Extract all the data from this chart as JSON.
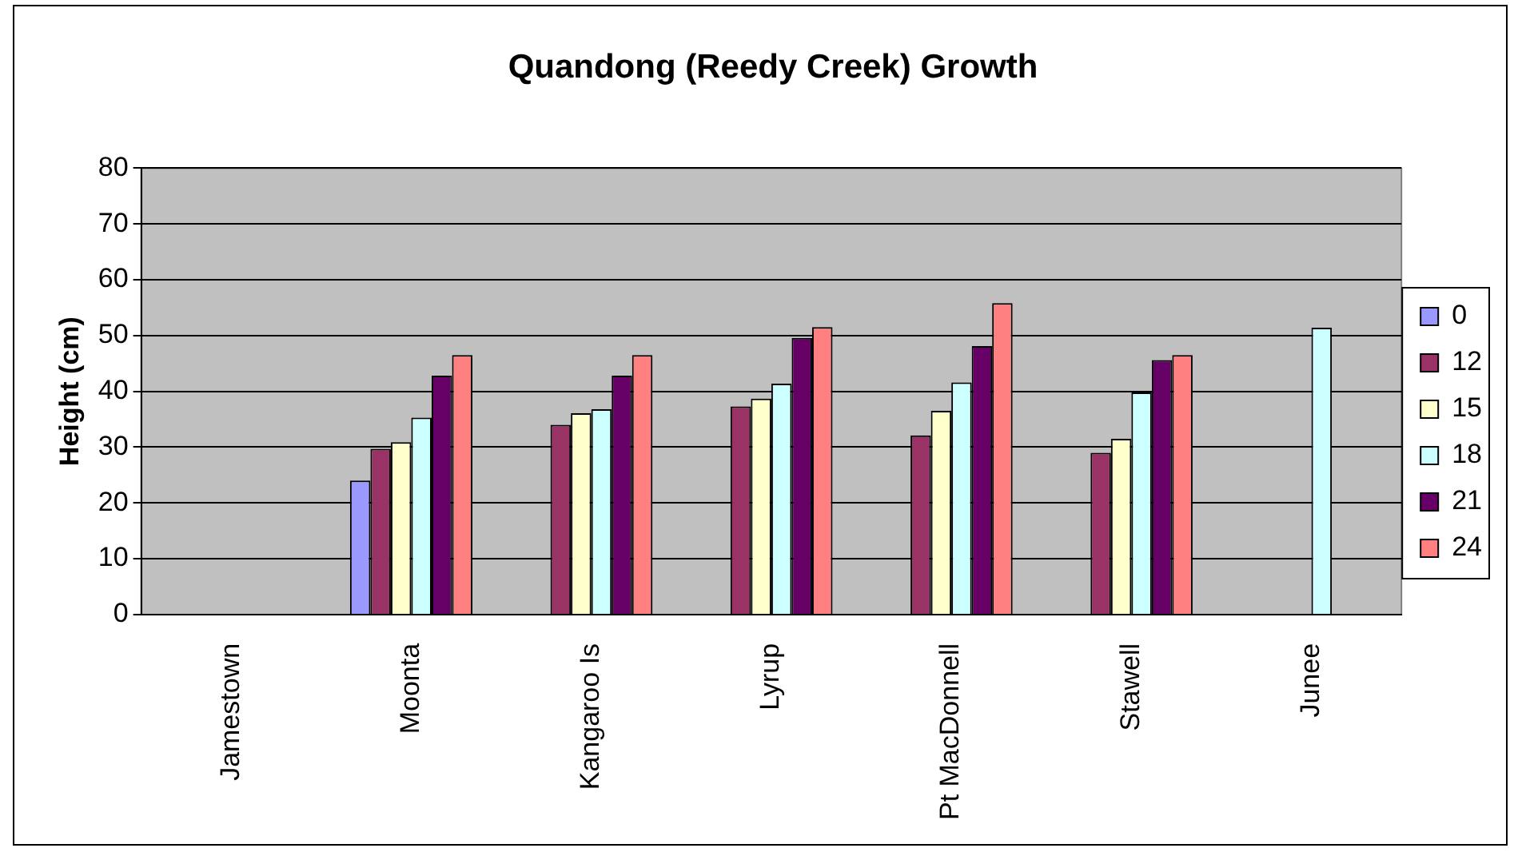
{
  "chart_data": {
    "type": "bar",
    "title": "Quandong (Reedy Creek) Growth",
    "ylabel": "Height (cm)",
    "categories": [
      "Jamestown",
      "Moonta",
      "Kangaroo Is",
      "Lyrup",
      "Pt MacDonnell",
      "Stawell",
      "Junee"
    ],
    "series": [
      {
        "name": "0",
        "color": "#9999ff",
        "values": [
          null,
          24,
          null,
          null,
          null,
          null,
          null
        ]
      },
      {
        "name": "12",
        "color": "#993366",
        "values": [
          null,
          29.7,
          34,
          37.3,
          32.1,
          29,
          null
        ]
      },
      {
        "name": "15",
        "color": "#ffffcc",
        "values": [
          null,
          30.9,
          36.1,
          38.7,
          36.5,
          31.5,
          null
        ]
      },
      {
        "name": "18",
        "color": "#ccffff",
        "values": [
          null,
          35.3,
          36.8,
          41.4,
          41.6,
          39.8,
          51.4
        ]
      },
      {
        "name": "21",
        "color": "#660066",
        "values": [
          null,
          42.8,
          42.8,
          49.6,
          48.1,
          45.6,
          null
        ]
      },
      {
        "name": "24",
        "color": "#ff8080",
        "values": [
          null,
          46.5,
          46.5,
          51.5,
          55.8,
          46.5,
          null
        ]
      }
    ],
    "ylim": [
      0,
      80
    ],
    "yticks": [
      0,
      10,
      20,
      30,
      40,
      50,
      60,
      70,
      80
    ],
    "grid": "y",
    "legend": "right"
  }
}
